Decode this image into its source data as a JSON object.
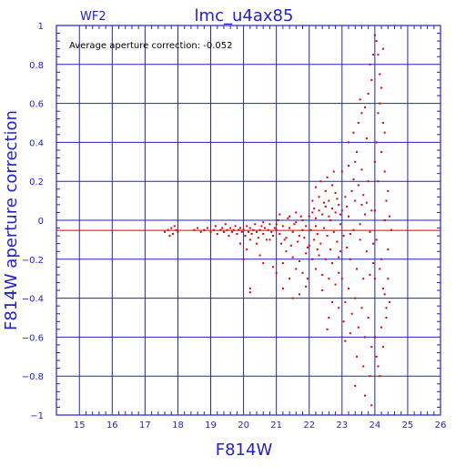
{
  "chart_data": {
    "type": "scatter",
    "title": "lmc_u4ax85",
    "chip_label": "WF2",
    "annotation": "Average aperture correction: -0.052",
    "xlabel": "F814W",
    "ylabel": "F814W aperture correction",
    "xlim": [
      14.3,
      26
    ],
    "ylim": [
      -1,
      1
    ],
    "x_ticks": [
      "15",
      "16",
      "17",
      "18",
      "19",
      "20",
      "21",
      "22",
      "23",
      "24",
      "25",
      "26"
    ],
    "y_ticks": [
      "−1",
      "−0.8",
      "−0.6",
      "−0.4",
      "−0.2",
      "0",
      "0.2",
      "0.4",
      "0.6",
      "0.8",
      "1"
    ],
    "grid": true,
    "mean_line": -0.052,
    "point_color": "#dd0000",
    "axis_color": "#2222cc",
    "points": [
      [
        17.6,
        -0.06
      ],
      [
        17.7,
        -0.05
      ],
      [
        17.8,
        -0.04
      ],
      [
        17.85,
        -0.07
      ],
      [
        17.9,
        -0.03
      ],
      [
        17.95,
        -0.05
      ],
      [
        18.0,
        -0.06
      ],
      [
        17.75,
        -0.08
      ],
      [
        18.5,
        -0.05
      ],
      [
        18.6,
        -0.04
      ],
      [
        18.7,
        -0.06
      ],
      [
        18.8,
        -0.05
      ],
      [
        18.9,
        -0.04
      ],
      [
        19.0,
        -0.06
      ],
      [
        19.1,
        -0.05
      ],
      [
        19.15,
        -0.03
      ],
      [
        19.2,
        -0.07
      ],
      [
        19.3,
        -0.05
      ],
      [
        19.35,
        -0.04
      ],
      [
        19.4,
        -0.06
      ],
      [
        19.45,
        -0.02
      ],
      [
        19.5,
        -0.05
      ],
      [
        19.55,
        -0.08
      ],
      [
        19.6,
        -0.04
      ],
      [
        19.65,
        -0.06
      ],
      [
        19.7,
        -0.05
      ],
      [
        19.75,
        -0.03
      ],
      [
        19.8,
        -0.07
      ],
      [
        19.85,
        -0.05
      ],
      [
        19.9,
        -0.04
      ],
      [
        19.95,
        -0.06
      ],
      [
        20.0,
        -0.05
      ],
      [
        20.05,
        -0.08
      ],
      [
        20.1,
        -0.03
      ],
      [
        20.15,
        -0.06
      ],
      [
        20.2,
        -0.04
      ],
      [
        20.25,
        -0.07
      ],
      [
        20.3,
        -0.05
      ],
      [
        20.35,
        -0.02
      ],
      [
        20.4,
        -0.06
      ],
      [
        20.45,
        -0.09
      ],
      [
        20.5,
        -0.05
      ],
      [
        20.55,
        -0.03
      ],
      [
        20.6,
        -0.07
      ],
      [
        20.65,
        -0.04
      ],
      [
        20.7,
        -0.1
      ],
      [
        20.75,
        -0.05
      ],
      [
        20.8,
        -0.02
      ],
      [
        20.85,
        -0.06
      ],
      [
        20.9,
        -0.08
      ],
      [
        20.95,
        -0.04
      ],
      [
        21.0,
        -0.05
      ],
      [
        20.2,
        -0.1
      ],
      [
        20.4,
        -0.12
      ],
      [
        20.6,
        -0.01
      ],
      [
        20.8,
        -0.1
      ],
      [
        19.9,
        -0.12
      ],
      [
        20.1,
        -0.15
      ],
      [
        20.0,
        -0.2
      ],
      [
        20.5,
        -0.18
      ],
      [
        20.2,
        -0.35
      ],
      [
        20.2,
        -0.37
      ],
      [
        20.9,
        -0.24
      ],
      [
        20.6,
        -0.22
      ],
      [
        21.0,
        -0.02
      ],
      [
        21.1,
        -0.07
      ],
      [
        21.2,
        -0.03
      ],
      [
        21.3,
        -0.09
      ],
      [
        21.4,
        -0.04
      ],
      [
        21.5,
        -0.06
      ],
      [
        21.6,
        -0.01
      ],
      [
        21.7,
        -0.08
      ],
      [
        21.8,
        -0.05
      ],
      [
        21.9,
        -0.03
      ],
      [
        21.05,
        0.0
      ],
      [
        21.15,
        -0.12
      ],
      [
        21.25,
        -0.1
      ],
      [
        21.35,
        0.01
      ],
      [
        21.45,
        -0.13
      ],
      [
        21.55,
        -0.02
      ],
      [
        21.65,
        -0.11
      ],
      [
        21.75,
        0.02
      ],
      [
        21.85,
        -0.09
      ],
      [
        21.95,
        -0.14
      ],
      [
        21.1,
        0.03
      ],
      [
        21.4,
        0.02
      ],
      [
        21.6,
        0.04
      ],
      [
        21.8,
        0.0
      ],
      [
        21.3,
        -0.16
      ],
      [
        21.5,
        -0.19
      ],
      [
        21.7,
        -0.21
      ],
      [
        21.9,
        -0.17
      ],
      [
        21.2,
        -0.22
      ],
      [
        21.6,
        -0.25
      ],
      [
        21.8,
        -0.27
      ],
      [
        21.95,
        -0.3
      ],
      [
        21.4,
        -0.3
      ],
      [
        21.9,
        -0.34
      ],
      [
        21.7,
        -0.38
      ],
      [
        21.0,
        -0.27
      ],
      [
        21.2,
        -0.35
      ],
      [
        21.5,
        -0.4
      ],
      [
        22.0,
        0.02
      ],
      [
        22.05,
        -0.05
      ],
      [
        22.1,
        0.04
      ],
      [
        22.15,
        -0.1
      ],
      [
        22.2,
        0.01
      ],
      [
        22.25,
        -0.07
      ],
      [
        22.3,
        0.05
      ],
      [
        22.35,
        -0.12
      ],
      [
        22.4,
        0.03
      ],
      [
        22.45,
        -0.04
      ],
      [
        22.5,
        0.07
      ],
      [
        22.55,
        -0.08
      ],
      [
        22.6,
        0.02
      ],
      [
        22.65,
        -0.15
      ],
      [
        22.7,
        0.06
      ],
      [
        22.75,
        -0.06
      ],
      [
        22.8,
        0.04
      ],
      [
        22.85,
        -0.11
      ],
      [
        22.9,
        0.08
      ],
      [
        22.95,
        -0.02
      ],
      [
        22.1,
        0.1
      ],
      [
        22.3,
        0.12
      ],
      [
        22.5,
        0.15
      ],
      [
        22.6,
        0.1
      ],
      [
        22.7,
        0.18
      ],
      [
        22.3,
        -0.18
      ],
      [
        22.5,
        -0.2
      ],
      [
        22.7,
        -0.22
      ],
      [
        22.9,
        -0.19
      ],
      [
        22.2,
        -0.25
      ],
      [
        22.4,
        -0.28
      ],
      [
        22.6,
        -0.3
      ],
      [
        22.8,
        -0.33
      ],
      [
        22.1,
        -0.2
      ],
      [
        22.9,
        -0.27
      ],
      [
        22.4,
        -0.36
      ],
      [
        22.2,
        0.17
      ],
      [
        22.8,
        0.14
      ],
      [
        22.0,
        -0.13
      ],
      [
        22.2,
        -0.03
      ],
      [
        22.45,
        0.09
      ],
      [
        22.65,
        0.0
      ],
      [
        22.85,
        0.11
      ],
      [
        22.95,
        -0.16
      ],
      [
        22.6,
        -0.5
      ],
      [
        22.55,
        -0.56
      ],
      [
        22.7,
        -0.42
      ],
      [
        22.9,
        -0.45
      ],
      [
        22.35,
        0.2
      ],
      [
        22.55,
        0.22
      ],
      [
        22.75,
        0.25
      ],
      [
        22.15,
        0.06
      ],
      [
        22.25,
        -0.15
      ],
      [
        22.95,
        0.03
      ],
      [
        23.0,
        0.05
      ],
      [
        23.05,
        -0.08
      ],
      [
        23.1,
        0.12
      ],
      [
        23.15,
        -0.14
      ],
      [
        23.2,
        0.02
      ],
      [
        23.25,
        -0.2
      ],
      [
        23.3,
        0.15
      ],
      [
        23.35,
        -0.05
      ],
      [
        23.4,
        0.1
      ],
      [
        23.45,
        -0.25
      ],
      [
        23.5,
        0.18
      ],
      [
        23.55,
        -0.1
      ],
      [
        23.6,
        0.08
      ],
      [
        23.65,
        -0.3
      ],
      [
        23.7,
        0.03
      ],
      [
        23.75,
        -0.16
      ],
      [
        23.8,
        0.2
      ],
      [
        23.85,
        -0.06
      ],
      [
        23.9,
        0.05
      ],
      [
        23.95,
        -0.22
      ],
      [
        23.0,
        0.25
      ],
      [
        23.2,
        0.28
      ],
      [
        23.4,
        0.3
      ],
      [
        23.6,
        0.26
      ],
      [
        23.0,
        -0.3
      ],
      [
        23.2,
        -0.35
      ],
      [
        23.4,
        -0.4
      ],
      [
        23.6,
        -0.45
      ],
      [
        23.8,
        -0.5
      ],
      [
        23.1,
        -0.42
      ],
      [
        23.3,
        -0.48
      ],
      [
        23.5,
        -0.55
      ],
      [
        23.7,
        -0.6
      ],
      [
        23.9,
        -0.65
      ],
      [
        23.05,
        -0.52
      ],
      [
        23.25,
        -0.58
      ],
      [
        23.45,
        -0.7
      ],
      [
        23.65,
        -0.75
      ],
      [
        23.85,
        -0.8
      ],
      [
        23.2,
        0.4
      ],
      [
        23.35,
        0.45
      ],
      [
        23.5,
        0.5
      ],
      [
        23.6,
        0.55
      ],
      [
        23.7,
        0.58
      ],
      [
        23.8,
        0.65
      ],
      [
        23.9,
        0.72
      ],
      [
        23.45,
        0.35
      ],
      [
        23.75,
        0.42
      ],
      [
        23.55,
        0.62
      ],
      [
        23.85,
        0.8
      ],
      [
        23.95,
        0.85
      ],
      [
        23.1,
        -0.62
      ],
      [
        23.4,
        -0.85
      ],
      [
        23.7,
        -0.9
      ],
      [
        23.9,
        -0.95
      ],
      [
        23.15,
        0.07
      ],
      [
        23.55,
        -0.02
      ],
      [
        23.75,
        0.09
      ],
      [
        23.95,
        -0.12
      ],
      [
        23.35,
        0.21
      ],
      [
        23.65,
        0.13
      ],
      [
        23.85,
        -0.28
      ],
      [
        23.25,
        -0.07
      ],
      [
        24.0,
        0.05
      ],
      [
        24.05,
        -0.1
      ],
      [
        24.1,
        0.2
      ],
      [
        24.15,
        -0.25
      ],
      [
        24.2,
        0.35
      ],
      [
        24.25,
        -0.35
      ],
      [
        24.3,
        0.0
      ],
      [
        24.35,
        -0.45
      ],
      [
        24.4,
        0.15
      ],
      [
        24.0,
        0.95
      ],
      [
        24.05,
        0.92
      ],
      [
        24.1,
        0.85
      ],
      [
        24.15,
        0.75
      ],
      [
        24.2,
        0.68
      ],
      [
        24.25,
        0.5
      ],
      [
        24.3,
        0.45
      ],
      [
        24.0,
        -0.6
      ],
      [
        24.05,
        -0.7
      ],
      [
        24.1,
        -0.75
      ],
      [
        24.15,
        -0.8
      ],
      [
        24.2,
        -0.55
      ],
      [
        24.25,
        -0.65
      ],
      [
        24.3,
        -0.38
      ],
      [
        24.4,
        -0.3
      ],
      [
        24.5,
        -0.05
      ],
      [
        24.45,
        -0.42
      ],
      [
        24.35,
        0.1
      ],
      [
        24.0,
        0.3
      ],
      [
        24.1,
        0.55
      ],
      [
        24.2,
        -0.2
      ],
      [
        24.3,
        0.25
      ],
      [
        24.4,
        -0.15
      ],
      [
        24.05,
        0.4
      ],
      [
        24.15,
        0.6
      ],
      [
        24.25,
        0.88
      ],
      [
        24.35,
        -0.5
      ],
      [
        24.45,
        0.02
      ],
      [
        24.0,
        -0.3
      ]
    ]
  }
}
